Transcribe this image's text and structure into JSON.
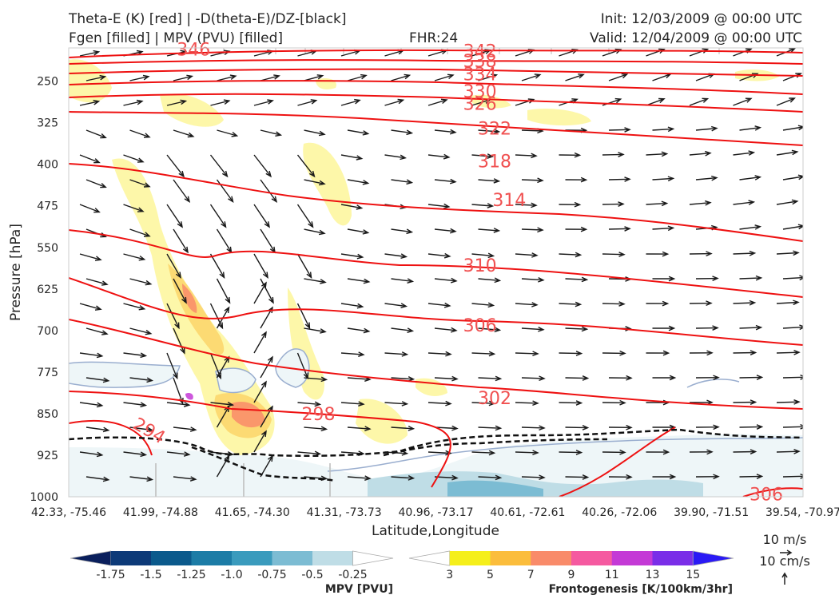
{
  "header": {
    "title_line1": "Theta-E (K) [red] | -D(theta-E)/DZ-[black]",
    "title_line2": "Fgen [filled] | MPV (PVU) [filled]",
    "fhr": "FHR:24",
    "init": "Init: 12/03/2009 @ 00:00 UTC",
    "valid": "Valid: 12/04/2009 @ 00:00 UTC"
  },
  "chart_data": {
    "type": "contour",
    "xlabel": "Latitude,Longitude",
    "ylabel": "Pressure [hPa]",
    "ylim": [
      1000,
      190
    ],
    "y_ticks": [
      250,
      325,
      400,
      475,
      550,
      625,
      700,
      775,
      850,
      925,
      1000
    ],
    "x_ticks": [
      "42.33, -75.46",
      "41.99, -74.88",
      "41.65, -74.30",
      "41.31, -73.73",
      "40.96, -73.17",
      "40.61, -72.61",
      "40.26, -72.06",
      "39.90, -71.51",
      "39.54, -70.97"
    ],
    "theta_e_labels": [
      {
        "value": "346",
        "x": 0.17,
        "p": 192
      },
      {
        "value": "342",
        "x": 0.56,
        "p": 195
      },
      {
        "value": "338",
        "x": 0.56,
        "p": 213
      },
      {
        "value": "334",
        "x": 0.56,
        "p": 237
      },
      {
        "value": "330",
        "x": 0.56,
        "p": 268
      },
      {
        "value": "326",
        "x": 0.56,
        "p": 290
      },
      {
        "value": "322",
        "x": 0.58,
        "p": 335
      },
      {
        "value": "318",
        "x": 0.58,
        "p": 394
      },
      {
        "value": "314",
        "x": 0.6,
        "p": 464
      },
      {
        "value": "310",
        "x": 0.56,
        "p": 582
      },
      {
        "value": "306",
        "x": 0.56,
        "p": 690
      },
      {
        "value": "306",
        "x": 0.95,
        "p": 995
      },
      {
        "value": "302",
        "x": 0.58,
        "p": 821
      },
      {
        "value": "298",
        "x": 0.34,
        "p": 850
      },
      {
        "value": "294",
        "x": 0.11,
        "p": 880
      }
    ],
    "wind_key": {
      "speed": "10 m/s",
      "vertical": "10 cm/s"
    }
  },
  "colorbars": {
    "mpv": {
      "label": "MPV [PVU]",
      "ticks": [
        "-1.75",
        "-1.5",
        "-1.25",
        "-1.0",
        "-0.75",
        "-0.5",
        "-0.25"
      ],
      "colors": [
        "#0a1f5c",
        "#0d3a78",
        "#0b5a8c",
        "#1c7ca6",
        "#3a9bbd",
        "#7cbcd3",
        "#bfdde6",
        "#ffffff"
      ]
    },
    "fgen": {
      "label": "Frontogenesis [K/100km/3hr]",
      "ticks": [
        "3",
        "5",
        "7",
        "9",
        "11",
        "13",
        "15"
      ],
      "colors": [
        "#ffffff",
        "#f5ef1b",
        "#fbbd3c",
        "#f98b6a",
        "#f55aa0",
        "#c43ad6",
        "#7a2ee8",
        "#2a1af5"
      ]
    }
  }
}
